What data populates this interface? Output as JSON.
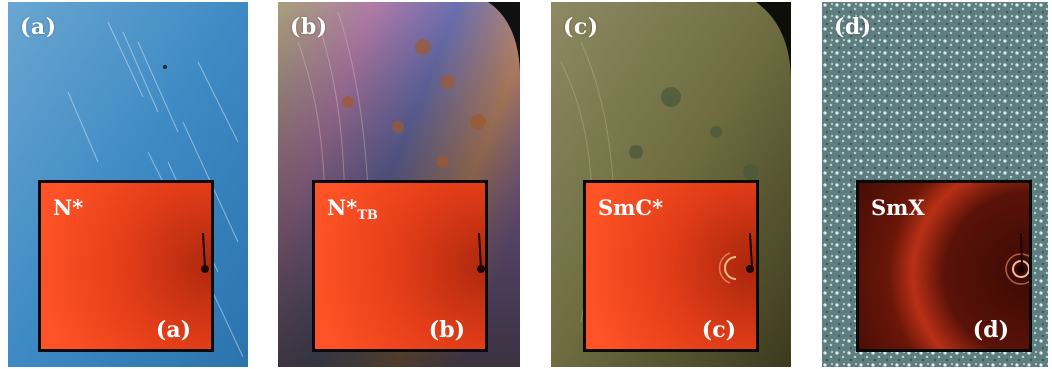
{
  "panels": [
    {
      "label": "(a)",
      "phase": "N*",
      "phase_sub": "",
      "inset_label": "(a)"
    },
    {
      "label": "(b)",
      "phase": "N*",
      "phase_sub": "TB",
      "inset_label": "(b)"
    },
    {
      "label": "(c)",
      "phase": "SmC*",
      "phase_sub": "",
      "inset_label": "(c)"
    },
    {
      "label": "(d)",
      "phase": "SmX",
      "phase_sub": "",
      "inset_label": "(d)"
    }
  ],
  "colors": {
    "panel_a_bg": "#4b8fc4",
    "panel_b_bg": "#8a7a5a",
    "panel_c_bg": "#6b6a3c",
    "panel_d_bg": "#6f8f90",
    "inset_red": "#e8401c"
  }
}
